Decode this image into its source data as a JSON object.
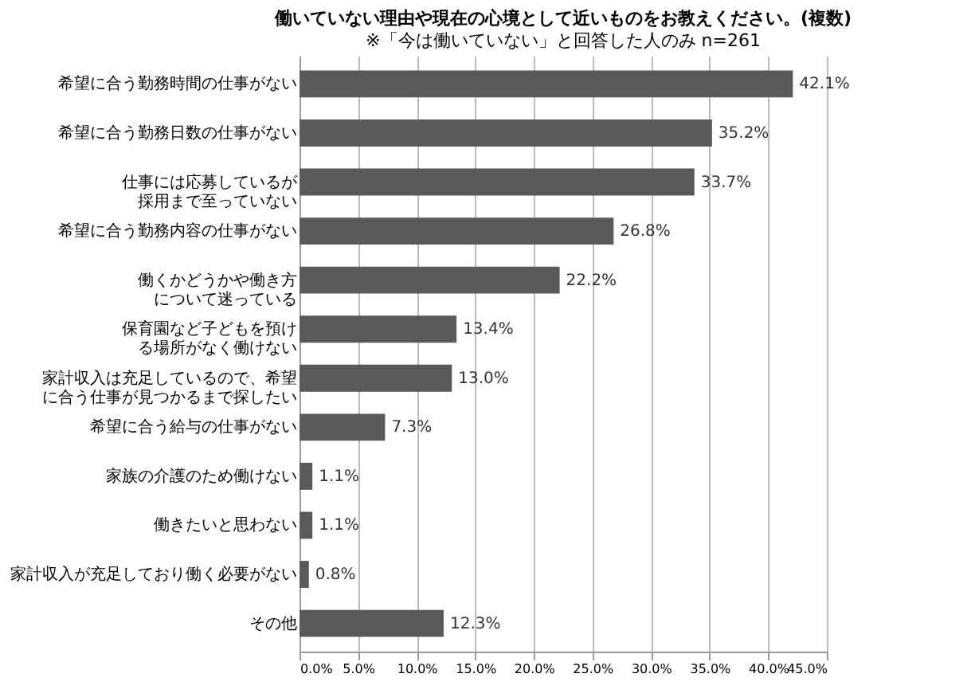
{
  "chart_data": {
    "type": "bar",
    "orientation": "horizontal",
    "title": "働いていない理由や現在の心境として近いものをお教えください。(複数)",
    "subtitle": "※「今は働いていない」と回答した人のみ n=261",
    "categories": [
      "希望に合う勤務時間の仕事がない",
      "希望に合う勤務日数の仕事がない",
      "仕事には応募しているが採用まで至っていない",
      "希望に合う勤務内容の仕事がない",
      "働くかどうかや働き方について迷っている",
      "保育園など子どもを預ける場所がなく働けない",
      "家計収入は充足しているので、希望に合う仕事が見つかるまで探したい",
      "希望に合う給与の仕事がない",
      "家族の介護のため働けない",
      "働きたいと思わない",
      "家計収入が充足しており働く必要がない",
      "その他"
    ],
    "values": [
      42.1,
      35.2,
      33.7,
      26.8,
      22.2,
      13.4,
      13.0,
      7.3,
      1.1,
      1.1,
      0.8,
      12.3
    ],
    "value_labels": [
      "42.1%",
      "35.2%",
      "33.7%",
      "26.8%",
      "22.2%",
      "13.4%",
      "13.0%",
      "7.3%",
      "1.1%",
      "1.1%",
      "0.8%",
      "12.3%"
    ],
    "color": "#595959",
    "xlim": [
      0,
      45
    ],
    "xticks": [
      {
        "value": 0,
        "label": "0.0%"
      },
      {
        "value": 5,
        "label": "5.0%"
      },
      {
        "value": 10,
        "label": "10.0%"
      },
      {
        "value": 15,
        "label": "15.0%"
      },
      {
        "value": 20,
        "label": "20.0%"
      },
      {
        "value": 25,
        "label": "25.0%"
      },
      {
        "value": 30,
        "label": "30.0%"
      },
      {
        "value": 35,
        "label": "35.0%"
      },
      {
        "value": 40,
        "label": "40.0%"
      },
      {
        "value": 45,
        "label": "45.0%"
      }
    ],
    "grid": "x"
  }
}
